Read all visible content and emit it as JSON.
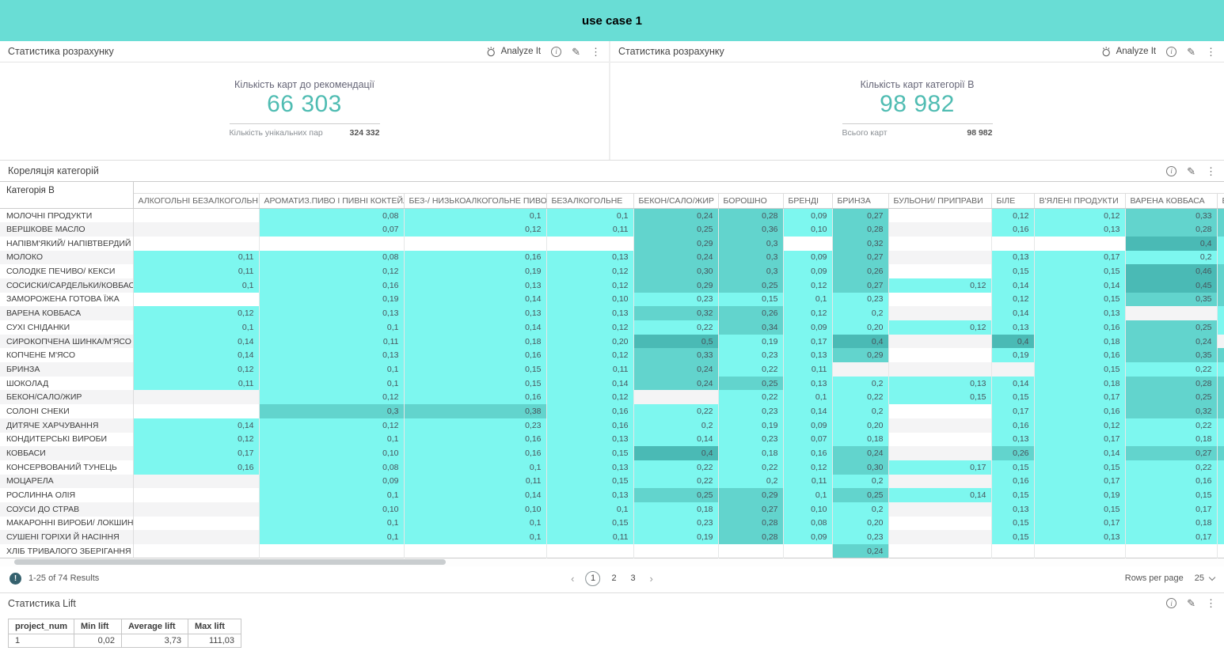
{
  "banner": {
    "title": "use case 1"
  },
  "colors": {
    "banner": "#69DDD5",
    "kpi_value": "#4FBCB2",
    "cell_light": "#7DF7EF",
    "cell_medium": "#62D4CD",
    "cell_dark": "#4ABAB5"
  },
  "kpi_panels": [
    {
      "header": "Статистика розрахунку",
      "analyze_label": "Analyze It",
      "kpi_title": "Кількість карт до рекомендації",
      "kpi_value": "66 303",
      "secondary_label": "Кількість унікальних пар",
      "secondary_value": "324 332"
    },
    {
      "header": "Статистика розрахунку",
      "analyze_label": "Analyze It",
      "kpi_title": "Кількість карт категорії В",
      "kpi_value": "98 982",
      "secondary_label": "Всього карт",
      "secondary_value": "98 982"
    }
  ],
  "correlation": {
    "header": "Кореляція категорій",
    "corner_header": "Категорія В",
    "columns": [
      "АЛКОГОЛЬНІ БЕЗАЛКОГОЛЬНІ",
      "АРОМАТИЗ.ПИВО І ПИВНІ КОКТЕЙЛІ",
      "БЕЗ-/ НИЗЬКОАЛКОГОЛЬНЕ ПИВО",
      "БЕЗАЛКОГОЛЬНЕ",
      "БЕКОН/САЛО/ЖИР",
      "БОРОШНО",
      "БРЕНДІ",
      "БРИНЗА",
      "БУЛЬОНИ/ ПРИПРАВИ",
      "БІЛЕ",
      "В'ЯЛЕНІ ПРОДУКТИ",
      "ВАРЕНА КОВБАСА",
      "ВАР"
    ],
    "rows": [
      {
        "label": "МОЛОЧНІ ПРОДУКТИ",
        "values": [
          "",
          "0,08",
          "0,1",
          "0,1",
          "0,24",
          "0,28",
          "0,09",
          "0,27",
          "",
          "0,12",
          "0,12",
          "0,33"
        ],
        "edge": "medium"
      },
      {
        "label": "ВЕРШКОВЕ МАСЛО",
        "values": [
          "",
          "0,07",
          "0,12",
          "0,11",
          "0,25",
          "0,36",
          "0,10",
          "0,28",
          "",
          "0,16",
          "0,13",
          "0,28"
        ],
        "edge": "medium"
      },
      {
        "label": "НАПІВМ'ЯКИЙ/ НАПІВТВЕРДИЙ",
        "values": [
          "",
          "",
          "",
          "",
          "0,29",
          "0,3",
          "",
          "0,32",
          "",
          "",
          "",
          "0,4"
        ],
        "edge": "light"
      },
      {
        "label": "МОЛОКО",
        "values": [
          "0,11",
          "0,08",
          "0,16",
          "0,13",
          "0,24",
          "0,3",
          "0,09",
          "0,27",
          "",
          "0,13",
          "0,17",
          "0,2"
        ],
        "edge": "light"
      },
      {
        "label": "СОЛОДКЕ ПЕЧИВО/ КЕКСИ",
        "values": [
          "0,11",
          "0,12",
          "0,19",
          "0,12",
          "0,30",
          "0,3",
          "0,09",
          "0,26",
          "",
          "0,15",
          "0,15",
          "0,46"
        ],
        "edge": "medium"
      },
      {
        "label": "СОСИСКИ/САРДЕЛЬКИ/КОВБАСКИ",
        "values": [
          "0,1",
          "0,16",
          "0,13",
          "0,12",
          "0,29",
          "0,25",
          "0,12",
          "0,27",
          "0,12",
          "0,14",
          "0,14",
          "0,45"
        ],
        "edge": "medium"
      },
      {
        "label": "ЗАМОРОЖЕНА ГОТОВА ЇЖА",
        "values": [
          "",
          "0,19",
          "0,14",
          "0,10",
          "0,23",
          "0,15",
          "0,1",
          "0,23",
          "",
          "0,12",
          "0,15",
          "0,35"
        ],
        "edge": "medium"
      },
      {
        "label": "ВАРЕНА КОВБАСА",
        "values": [
          "0,12",
          "0,13",
          "0,13",
          "0,13",
          "0,32",
          "0,26",
          "0,12",
          "0,2",
          "",
          "0,14",
          "0,13",
          ""
        ],
        "edge": "light"
      },
      {
        "label": "СУХІ СНІДАНКИ",
        "values": [
          "0,1",
          "0,1",
          "0,14",
          "0,12",
          "0,22",
          "0,34",
          "0,09",
          "0,20",
          "0,12",
          "0,13",
          "0,16",
          "0,25"
        ],
        "edge": "light"
      },
      {
        "label": "СИРОКОПЧЕНА ШИНКА/М'ЯСО",
        "values": [
          "0,14",
          "0,11",
          "0,18",
          "0,20",
          "0,5",
          "0,19",
          "0,17",
          "0,4",
          "",
          "0,4",
          "0,18",
          "0,24"
        ],
        "edge": ""
      },
      {
        "label": "КОПЧЕНЕ М'ЯСО",
        "values": [
          "0,14",
          "0,13",
          "0,16",
          "0,12",
          "0,33",
          "0,23",
          "0,13",
          "0,29",
          "",
          "0,19",
          "0,16",
          "0,35"
        ],
        "edge": "medium"
      },
      {
        "label": "БРИНЗА",
        "values": [
          "0,12",
          "0,1",
          "0,15",
          "0,11",
          "0,24",
          "0,22",
          "0,11",
          "",
          "",
          "",
          "0,15",
          "0,22"
        ],
        "edge": "light"
      },
      {
        "label": "ШОКОЛАД",
        "values": [
          "0,11",
          "0,1",
          "0,15",
          "0,14",
          "0,24",
          "0,25",
          "0,13",
          "0,2",
          "0,13",
          "0,14",
          "0,18",
          "0,28"
        ],
        "edge": "medium"
      },
      {
        "label": "БЕКОН/САЛО/ЖИР",
        "values": [
          "",
          "0,12",
          "0,16",
          "0,12",
          "",
          "0,22",
          "0,1",
          "0,22",
          "0,15",
          "0,15",
          "0,17",
          "0,25"
        ],
        "edge": "medium"
      },
      {
        "label": "СОЛОНІ СНЕКИ",
        "values": [
          "",
          "0,3",
          "0,38",
          "0,16",
          "0,22",
          "0,23",
          "0,14",
          "0,2",
          "",
          "0,17",
          "0,16",
          "0,32"
        ],
        "edge": "medium"
      },
      {
        "label": "ДИТЯЧЕ ХАРЧУВАННЯ",
        "values": [
          "0,14",
          "0,12",
          "0,23",
          "0,16",
          "0,2",
          "0,19",
          "0,09",
          "0,20",
          "",
          "0,16",
          "0,12",
          "0,22"
        ],
        "edge": "light"
      },
      {
        "label": "КОНДИТЕРСЬКІ ВИРОБИ",
        "values": [
          "0,12",
          "0,1",
          "0,16",
          "0,13",
          "0,14",
          "0,23",
          "0,07",
          "0,18",
          "",
          "0,13",
          "0,17",
          "0,18"
        ],
        "edge": "light"
      },
      {
        "label": "КОВБАСИ",
        "values": [
          "0,17",
          "0,10",
          "0,16",
          "0,15",
          "0,4",
          "0,18",
          "0,16",
          "0,24",
          "",
          "0,26",
          "0,14",
          "0,27"
        ],
        "edge": "medium"
      },
      {
        "label": "КОНСЕРВОВАНИЙ ТУНЕЦЬ",
        "values": [
          "0,16",
          "0,08",
          "0,1",
          "0,13",
          "0,22",
          "0,22",
          "0,12",
          "0,30",
          "0,17",
          "0,15",
          "0,15",
          "0,22"
        ],
        "edge": "light"
      },
      {
        "label": "МОЦАРЕЛА",
        "values": [
          "",
          "0,09",
          "0,11",
          "0,15",
          "0,22",
          "0,2",
          "0,11",
          "0,2",
          "",
          "0,16",
          "0,17",
          "0,16"
        ],
        "edge": "light"
      },
      {
        "label": "РОСЛИННА ОЛІЯ",
        "values": [
          "",
          "0,1",
          "0,14",
          "0,13",
          "0,25",
          "0,29",
          "0,1",
          "0,25",
          "0,14",
          "0,15",
          "0,19",
          "0,15"
        ],
        "edge": "light"
      },
      {
        "label": "СОУСИ ДО СТРАВ",
        "values": [
          "",
          "0,10",
          "0,10",
          "0,1",
          "0,18",
          "0,27",
          "0,10",
          "0,2",
          "",
          "0,13",
          "0,15",
          "0,17"
        ],
        "edge": "light"
      },
      {
        "label": "МАКАРОННІ ВИРОБИ/ ЛОКШИНА",
        "values": [
          "",
          "0,1",
          "0,1",
          "0,15",
          "0,23",
          "0,28",
          "0,08",
          "0,20",
          "",
          "0,15",
          "0,17",
          "0,18"
        ],
        "edge": "light"
      },
      {
        "label": "СУШЕНІ ГОРІХИ Й НАСІННЯ",
        "values": [
          "",
          "0,1",
          "0,1",
          "0,11",
          "0,19",
          "0,28",
          "0,09",
          "0,23",
          "",
          "0,15",
          "0,13",
          "0,17"
        ],
        "edge": "light"
      },
      {
        "label": "ХЛІБ ТРИВАЛОГО ЗБЕРІГАННЯ",
        "values": [
          "",
          "",
          "",
          "",
          "",
          "",
          "",
          "0,24",
          "",
          "",
          "",
          ""
        ],
        "edge": ""
      }
    ],
    "footer": {
      "results_text": "1-25 of 74 Results",
      "badge_glyph": "!",
      "prev_icon": "‹",
      "next_icon": "›",
      "pages": [
        "1",
        "2",
        "3"
      ],
      "current_page": "1",
      "rows_per_page_label": "Rows per page",
      "rows_per_page_value": "25"
    }
  },
  "lift": {
    "header": "Статистика Lift",
    "columns": [
      "project_num",
      "Min lift",
      "Average lift",
      "Max lift"
    ],
    "rows": [
      [
        "1",
        "0,02",
        "3,73",
        "111,03"
      ]
    ]
  }
}
